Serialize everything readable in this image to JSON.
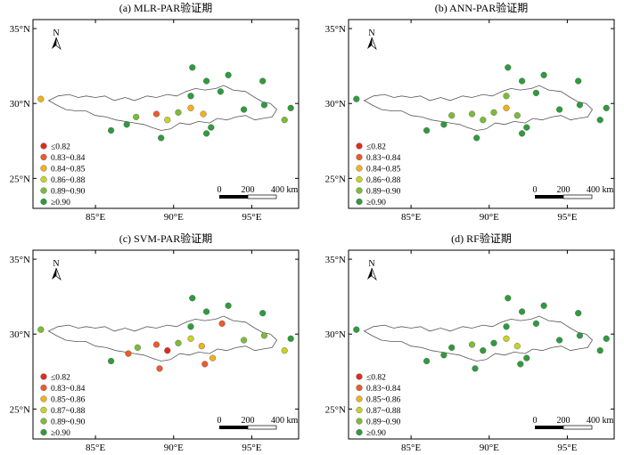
{
  "panels": [
    {
      "title": "(a) MLR-PAR验证期",
      "legend": [
        "≤0.82",
        "0.83~0.84",
        "0.84~0.85",
        "0.86~0.88",
        "0.89~0.90",
        "≥0.90"
      ],
      "stations": [
        {
          "lon": 81.5,
          "lat": 30.3,
          "c": 2
        },
        {
          "lon": 86.0,
          "lat": 28.2,
          "c": 5
        },
        {
          "lon": 87.0,
          "lat": 28.6,
          "c": 5
        },
        {
          "lon": 87.6,
          "lat": 29.1,
          "c": 4
        },
        {
          "lon": 88.9,
          "lat": 29.3,
          "c": 1
        },
        {
          "lon": 89.2,
          "lat": 27.7,
          "c": 5
        },
        {
          "lon": 89.6,
          "lat": 28.9,
          "c": 3
        },
        {
          "lon": 90.3,
          "lat": 29.4,
          "c": 4
        },
        {
          "lon": 91.1,
          "lat": 29.7,
          "c": 2
        },
        {
          "lon": 91.1,
          "lat": 30.5,
          "c": 5
        },
        {
          "lon": 91.2,
          "lat": 32.4,
          "c": 5
        },
        {
          "lon": 91.9,
          "lat": 29.3,
          "c": 2
        },
        {
          "lon": 92.1,
          "lat": 28.0,
          "c": 5
        },
        {
          "lon": 92.1,
          "lat": 31.5,
          "c": 5
        },
        {
          "lon": 92.4,
          "lat": 28.4,
          "c": 5
        },
        {
          "lon": 93.0,
          "lat": 30.8,
          "c": 5
        },
        {
          "lon": 93.5,
          "lat": 31.9,
          "c": 5
        },
        {
          "lon": 94.5,
          "lat": 29.6,
          "c": 5
        },
        {
          "lon": 95.7,
          "lat": 31.5,
          "c": 5
        },
        {
          "lon": 95.8,
          "lat": 29.9,
          "c": 5
        },
        {
          "lon": 97.1,
          "lat": 28.9,
          "c": 4
        },
        {
          "lon": 97.5,
          "lat": 29.7,
          "c": 5
        }
      ]
    },
    {
      "title": "(b) ANN-PAR验证期",
      "legend": [
        "≤0.82",
        "0.83~0.84",
        "0.84~0.85",
        "0.86~0.88",
        "0.89~0.90",
        "≥0.90"
      ],
      "stations": [
        {
          "lon": 81.5,
          "lat": 30.3,
          "c": 5
        },
        {
          "lon": 86.0,
          "lat": 28.2,
          "c": 5
        },
        {
          "lon": 87.1,
          "lat": 28.6,
          "c": 5
        },
        {
          "lon": 87.6,
          "lat": 29.2,
          "c": 4
        },
        {
          "lon": 88.9,
          "lat": 29.3,
          "c": 4
        },
        {
          "lon": 89.2,
          "lat": 27.7,
          "c": 5
        },
        {
          "lon": 89.6,
          "lat": 28.9,
          "c": 4
        },
        {
          "lon": 90.3,
          "lat": 29.4,
          "c": 4
        },
        {
          "lon": 91.1,
          "lat": 29.7,
          "c": 2
        },
        {
          "lon": 91.1,
          "lat": 30.5,
          "c": 4
        },
        {
          "lon": 91.2,
          "lat": 32.4,
          "c": 5
        },
        {
          "lon": 91.8,
          "lat": 29.2,
          "c": 4
        },
        {
          "lon": 92.1,
          "lat": 28.0,
          "c": 5
        },
        {
          "lon": 92.1,
          "lat": 31.5,
          "c": 5
        },
        {
          "lon": 92.4,
          "lat": 28.4,
          "c": 5
        },
        {
          "lon": 93.0,
          "lat": 30.7,
          "c": 5
        },
        {
          "lon": 93.5,
          "lat": 31.9,
          "c": 5
        },
        {
          "lon": 94.5,
          "lat": 29.6,
          "c": 5
        },
        {
          "lon": 95.7,
          "lat": 31.5,
          "c": 5
        },
        {
          "lon": 95.8,
          "lat": 29.9,
          "c": 5
        },
        {
          "lon": 97.1,
          "lat": 28.9,
          "c": 5
        },
        {
          "lon": 97.5,
          "lat": 29.7,
          "c": 5
        }
      ]
    },
    {
      "title": "(c) SVM-PAR验证期",
      "legend": [
        "≤0.82",
        "0.83~0.84",
        "0.85~0.86",
        "0.87~0.88",
        "0.89~0.90",
        "≥0.90"
      ],
      "stations": [
        {
          "lon": 81.5,
          "lat": 30.3,
          "c": 4
        },
        {
          "lon": 86.0,
          "lat": 28.2,
          "c": 5
        },
        {
          "lon": 87.1,
          "lat": 28.7,
          "c": 1
        },
        {
          "lon": 87.7,
          "lat": 29.1,
          "c": 4
        },
        {
          "lon": 88.9,
          "lat": 29.3,
          "c": 1
        },
        {
          "lon": 89.1,
          "lat": 27.7,
          "c": 1
        },
        {
          "lon": 89.6,
          "lat": 28.9,
          "c": 0
        },
        {
          "lon": 90.3,
          "lat": 29.4,
          "c": 4
        },
        {
          "lon": 91.1,
          "lat": 29.7,
          "c": 3
        },
        {
          "lon": 91.1,
          "lat": 30.5,
          "c": 5
        },
        {
          "lon": 91.2,
          "lat": 32.4,
          "c": 5
        },
        {
          "lon": 91.8,
          "lat": 29.2,
          "c": 2
        },
        {
          "lon": 92.0,
          "lat": 28.0,
          "c": 1
        },
        {
          "lon": 92.1,
          "lat": 31.5,
          "c": 5
        },
        {
          "lon": 92.5,
          "lat": 28.4,
          "c": 2
        },
        {
          "lon": 93.1,
          "lat": 30.7,
          "c": 1
        },
        {
          "lon": 93.5,
          "lat": 31.9,
          "c": 5
        },
        {
          "lon": 94.5,
          "lat": 29.6,
          "c": 4
        },
        {
          "lon": 95.7,
          "lat": 31.4,
          "c": 5
        },
        {
          "lon": 95.8,
          "lat": 29.9,
          "c": 4
        },
        {
          "lon": 97.1,
          "lat": 28.9,
          "c": 3
        },
        {
          "lon": 97.5,
          "lat": 29.7,
          "c": 5
        }
      ]
    },
    {
      "title": "(d) RF验证期",
      "legend": [
        "≤0.82",
        "0.83~0.84",
        "0.85~0.86",
        "0.87~0.88",
        "0.89~0.90",
        "≥0.90"
      ],
      "stations": [
        {
          "lon": 81.5,
          "lat": 30.3,
          "c": 5
        },
        {
          "lon": 86.0,
          "lat": 28.2,
          "c": 5
        },
        {
          "lon": 87.1,
          "lat": 28.6,
          "c": 5
        },
        {
          "lon": 87.6,
          "lat": 29.1,
          "c": 5
        },
        {
          "lon": 88.9,
          "lat": 29.3,
          "c": 4
        },
        {
          "lon": 89.1,
          "lat": 27.7,
          "c": 5
        },
        {
          "lon": 89.6,
          "lat": 28.9,
          "c": 5
        },
        {
          "lon": 90.3,
          "lat": 29.4,
          "c": 5
        },
        {
          "lon": 91.1,
          "lat": 29.7,
          "c": 3
        },
        {
          "lon": 91.1,
          "lat": 30.5,
          "c": 5
        },
        {
          "lon": 91.2,
          "lat": 32.4,
          "c": 5
        },
        {
          "lon": 91.8,
          "lat": 29.2,
          "c": 3
        },
        {
          "lon": 92.0,
          "lat": 28.0,
          "c": 5
        },
        {
          "lon": 92.1,
          "lat": 31.5,
          "c": 5
        },
        {
          "lon": 92.4,
          "lat": 28.4,
          "c": 5
        },
        {
          "lon": 93.0,
          "lat": 30.7,
          "c": 5
        },
        {
          "lon": 93.5,
          "lat": 31.9,
          "c": 5
        },
        {
          "lon": 94.5,
          "lat": 29.6,
          "c": 5
        },
        {
          "lon": 95.7,
          "lat": 31.4,
          "c": 5
        },
        {
          "lon": 95.8,
          "lat": 29.9,
          "c": 5
        },
        {
          "lon": 97.1,
          "lat": 28.9,
          "c": 5
        },
        {
          "lon": 97.5,
          "lat": 29.7,
          "c": 5
        }
      ]
    }
  ],
  "class_colors": [
    "#e02b1f",
    "#ec5b2a",
    "#f0b21c",
    "#c9d227",
    "#7dbb3a",
    "#2f9b3d"
  ],
  "north_label": "N",
  "x_ticks": [
    "85°E",
    "90°E",
    "95°E"
  ],
  "y_ticks": [
    "35°N",
    "30°N",
    "25°N"
  ],
  "scale_bar": {
    "labels": [
      "0",
      "200",
      "400 km"
    ]
  }
}
